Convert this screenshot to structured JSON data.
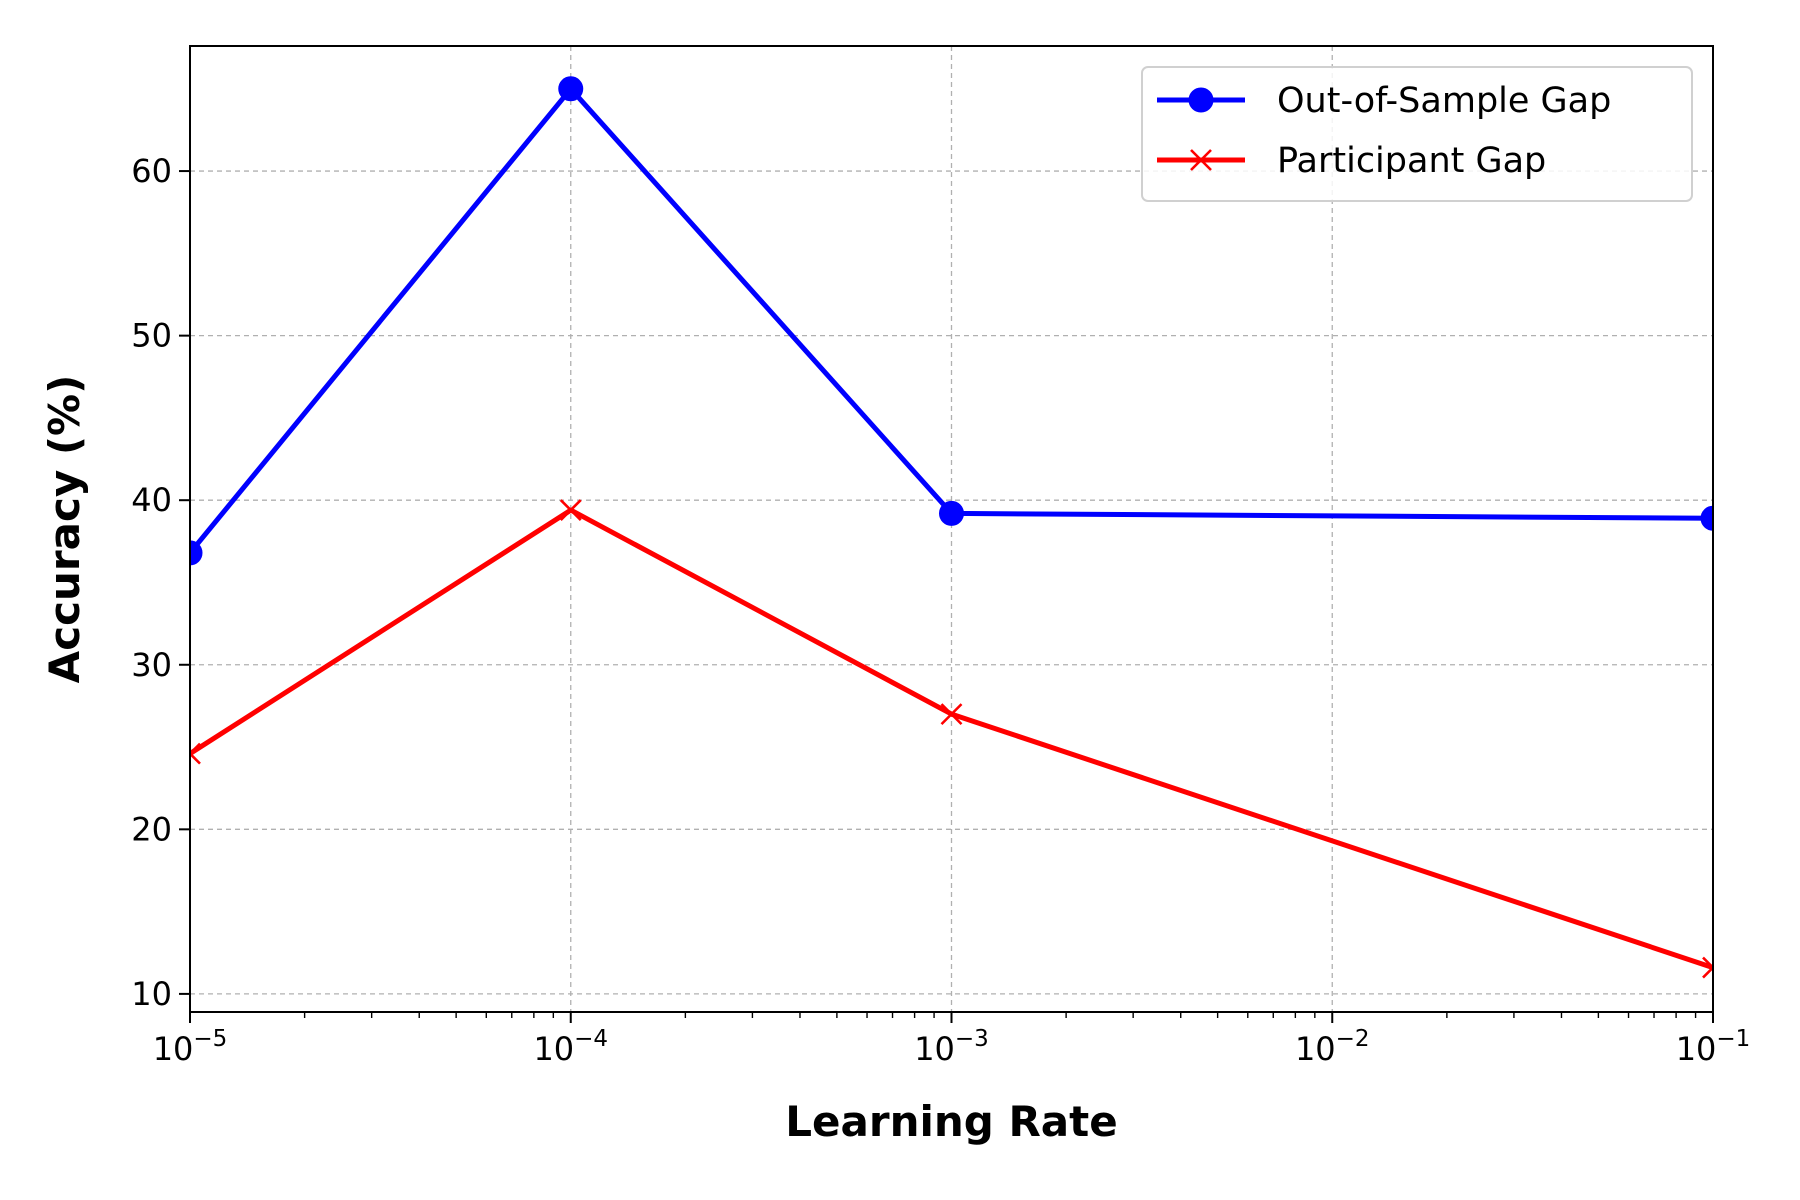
{
  "chart_data": {
    "type": "line",
    "title": "",
    "xlabel": "Learning Rate",
    "ylabel": "Accuracy (%)",
    "xscale": "log",
    "xlim": [
      1e-05,
      0.1
    ],
    "ylim": [
      8.9,
      67.6
    ],
    "grid": true,
    "legend_position": "top-right",
    "x": [
      1e-05,
      0.0001,
      0.001,
      0.1
    ],
    "x_ticks": [
      {
        "value": 1e-05,
        "base": "10",
        "exp": "−5"
      },
      {
        "value": 0.0001,
        "base": "10",
        "exp": "−4"
      },
      {
        "value": 0.001,
        "base": "10",
        "exp": "−3"
      },
      {
        "value": 0.01,
        "base": "10",
        "exp": "−2"
      },
      {
        "value": 0.1,
        "base": "10",
        "exp": "−1"
      }
    ],
    "y_ticks": [
      "10",
      "20",
      "30",
      "40",
      "50",
      "60"
    ],
    "series": [
      {
        "name": "Out-of-Sample Gap",
        "color": "#0000ff",
        "marker": "circle",
        "values": [
          36.8,
          65.0,
          39.2,
          38.9
        ]
      },
      {
        "name": "Participant Gap",
        "color": "#ff0000",
        "marker": "x",
        "values": [
          24.6,
          39.4,
          27.0,
          11.6
        ]
      }
    ]
  }
}
